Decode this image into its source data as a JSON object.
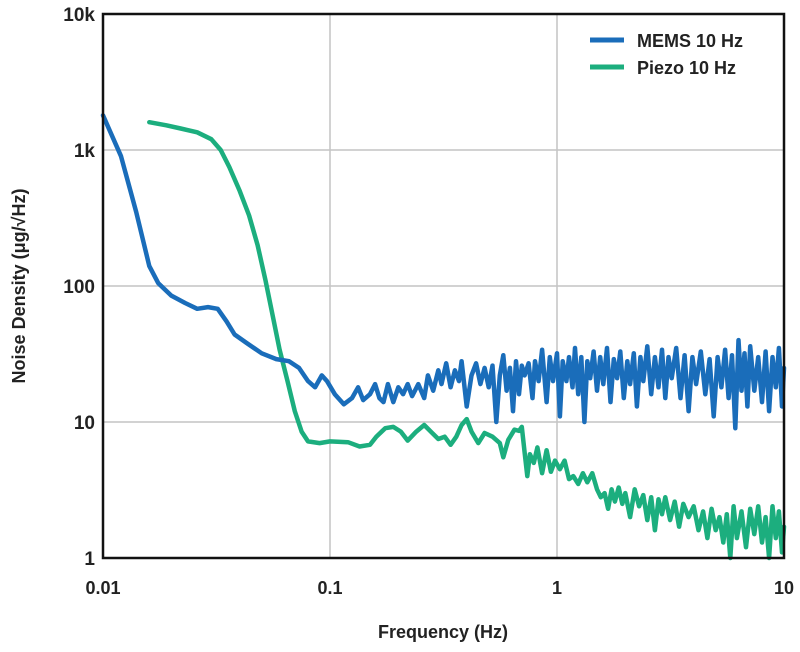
{
  "chart_data": {
    "type": "line",
    "title": "",
    "xlabel": "Frequency (Hz)",
    "ylabel": "Noise Density (μg/√Hz)",
    "xscale": "log",
    "yscale": "log",
    "xlim": [
      0.01,
      10
    ],
    "ylim": [
      1,
      10000
    ],
    "xticks": [
      0.01,
      0.1,
      1,
      10
    ],
    "xtick_labels": [
      "0.01",
      "0.1",
      "1",
      "10"
    ],
    "yticks": [
      1,
      10,
      100,
      1000,
      10000
    ],
    "ytick_labels": [
      "1",
      "10",
      "100",
      "1k",
      "10k"
    ],
    "grid": true,
    "legend_position": "top-right",
    "series": [
      {
        "name": "MEMS 10 Hz",
        "color": "#1a6dba",
        "points": [
          [
            0.01,
            1800
          ],
          [
            0.012,
            900
          ],
          [
            0.014,
            350
          ],
          [
            0.016,
            140
          ],
          [
            0.0175,
            105
          ],
          [
            0.02,
            85
          ],
          [
            0.023,
            75
          ],
          [
            0.026,
            68
          ],
          [
            0.029,
            70
          ],
          [
            0.032,
            68
          ],
          [
            0.035,
            55
          ],
          [
            0.038,
            44
          ],
          [
            0.043,
            38
          ],
          [
            0.05,
            32
          ],
          [
            0.058,
            29
          ],
          [
            0.066,
            28
          ],
          [
            0.073,
            25
          ],
          [
            0.08,
            20
          ],
          [
            0.086,
            18
          ],
          [
            0.092,
            22
          ],
          [
            0.097,
            20
          ],
          [
            0.105,
            16
          ],
          [
            0.115,
            13.5
          ],
          [
            0.125,
            15
          ],
          [
            0.133,
            18
          ],
          [
            0.14,
            14.5
          ],
          [
            0.15,
            16
          ],
          [
            0.158,
            19
          ],
          [
            0.165,
            15
          ],
          [
            0.172,
            14
          ],
          [
            0.18,
            19
          ],
          [
            0.19,
            14
          ],
          [
            0.2,
            18
          ],
          [
            0.21,
            16
          ],
          [
            0.22,
            19
          ],
          [
            0.23,
            15.5
          ],
          [
            0.245,
            19
          ],
          [
            0.26,
            15
          ],
          [
            0.27,
            22
          ],
          [
            0.285,
            17
          ],
          [
            0.3,
            24
          ],
          [
            0.31,
            19
          ],
          [
            0.325,
            27
          ],
          [
            0.34,
            18
          ],
          [
            0.355,
            24
          ],
          [
            0.37,
            20
          ],
          [
            0.38,
            28
          ],
          [
            0.4,
            13
          ],
          [
            0.42,
            22
          ],
          [
            0.44,
            27
          ],
          [
            0.46,
            19
          ],
          [
            0.48,
            25
          ],
          [
            0.5,
            18
          ],
          [
            0.52,
            26
          ],
          [
            0.54,
            10
          ],
          [
            0.56,
            22
          ],
          [
            0.58,
            31
          ],
          [
            0.6,
            17
          ],
          [
            0.62,
            25
          ],
          [
            0.64,
            12
          ],
          [
            0.66,
            28
          ],
          [
            0.68,
            16
          ],
          [
            0.7,
            26
          ],
          [
            0.72,
            22
          ],
          [
            0.75,
            27
          ],
          [
            0.78,
            15
          ],
          [
            0.8,
            28
          ],
          [
            0.83,
            20
          ],
          [
            0.86,
            34
          ],
          [
            0.9,
            14
          ],
          [
            0.93,
            30
          ],
          [
            0.96,
            20
          ],
          [
            1.0,
            32
          ],
          [
            1.03,
            11
          ],
          [
            1.06,
            28
          ],
          [
            1.1,
            20
          ],
          [
            1.13,
            30
          ],
          [
            1.17,
            18
          ],
          [
            1.2,
            35
          ],
          [
            1.24,
            16
          ],
          [
            1.28,
            30
          ],
          [
            1.32,
            10
          ],
          [
            1.36,
            28
          ],
          [
            1.4,
            21
          ],
          [
            1.45,
            33
          ],
          [
            1.5,
            17
          ],
          [
            1.55,
            30
          ],
          [
            1.6,
            19
          ],
          [
            1.66,
            35
          ],
          [
            1.72,
            14
          ],
          [
            1.78,
            29
          ],
          [
            1.84,
            21
          ],
          [
            1.9,
            33
          ],
          [
            1.97,
            15
          ],
          [
            2.04,
            28
          ],
          [
            2.1,
            19
          ],
          [
            2.18,
            32
          ],
          [
            2.25,
            13
          ],
          [
            2.33,
            30
          ],
          [
            2.4,
            20
          ],
          [
            2.5,
            36
          ],
          [
            2.6,
            16
          ],
          [
            2.7,
            30
          ],
          [
            2.8,
            18
          ],
          [
            2.9,
            34
          ],
          [
            3.0,
            15
          ],
          [
            3.1,
            30
          ],
          [
            3.2,
            21
          ],
          [
            3.35,
            35
          ],
          [
            3.5,
            15
          ],
          [
            3.65,
            31
          ],
          [
            3.8,
            12
          ],
          [
            3.95,
            30
          ],
          [
            4.1,
            19
          ],
          [
            4.3,
            33
          ],
          [
            4.5,
            16
          ],
          [
            4.7,
            29
          ],
          [
            4.9,
            11
          ],
          [
            5.1,
            30
          ],
          [
            5.3,
            18
          ],
          [
            5.5,
            34
          ],
          [
            5.7,
            15
          ],
          [
            5.9,
            31
          ],
          [
            6.1,
            9
          ],
          [
            6.3,
            40
          ],
          [
            6.5,
            17
          ],
          [
            6.7,
            32
          ],
          [
            6.9,
            13
          ],
          [
            7.1,
            36
          ],
          [
            7.4,
            17
          ],
          [
            7.7,
            30
          ],
          [
            8.0,
            14
          ],
          [
            8.3,
            33
          ],
          [
            8.6,
            12
          ],
          [
            8.9,
            30
          ],
          [
            9.2,
            18
          ],
          [
            9.5,
            35
          ],
          [
            9.8,
            13
          ],
          [
            10,
            25
          ]
        ]
      },
      {
        "name": "Piezo 10 Hz",
        "color": "#1cae7e",
        "points": [
          [
            0.016,
            1600
          ],
          [
            0.019,
            1520
          ],
          [
            0.022,
            1440
          ],
          [
            0.026,
            1350
          ],
          [
            0.03,
            1200
          ],
          [
            0.033,
            1000
          ],
          [
            0.036,
            750
          ],
          [
            0.04,
            500
          ],
          [
            0.044,
            330
          ],
          [
            0.048,
            200
          ],
          [
            0.052,
            110
          ],
          [
            0.056,
            60
          ],
          [
            0.06,
            34
          ],
          [
            0.065,
            20
          ],
          [
            0.07,
            12
          ],
          [
            0.075,
            8.5
          ],
          [
            0.08,
            7.2
          ],
          [
            0.09,
            7.0
          ],
          [
            0.1,
            7.2
          ],
          [
            0.12,
            7.1
          ],
          [
            0.135,
            6.6
          ],
          [
            0.15,
            6.8
          ],
          [
            0.16,
            7.8
          ],
          [
            0.175,
            9.0
          ],
          [
            0.19,
            9.2
          ],
          [
            0.205,
            8.5
          ],
          [
            0.22,
            7.3
          ],
          [
            0.24,
            8.5
          ],
          [
            0.26,
            9.5
          ],
          [
            0.28,
            8.4
          ],
          [
            0.3,
            7.5
          ],
          [
            0.32,
            7.8
          ],
          [
            0.34,
            6.8
          ],
          [
            0.36,
            7.8
          ],
          [
            0.38,
            9.5
          ],
          [
            0.4,
            10.5
          ],
          [
            0.42,
            8.5
          ],
          [
            0.45,
            7.0
          ],
          [
            0.48,
            8.3
          ],
          [
            0.52,
            7.8
          ],
          [
            0.56,
            7.0
          ],
          [
            0.58,
            5.5
          ],
          [
            0.61,
            7.4
          ],
          [
            0.65,
            8.8
          ],
          [
            0.68,
            8.6
          ],
          [
            0.7,
            9.2
          ],
          [
            0.72,
            6.0
          ],
          [
            0.74,
            4.0
          ],
          [
            0.76,
            5.8
          ],
          [
            0.79,
            5.0
          ],
          [
            0.82,
            6.5
          ],
          [
            0.86,
            4.2
          ],
          [
            0.9,
            6.2
          ],
          [
            0.94,
            4.3
          ],
          [
            0.98,
            5.2
          ],
          [
            1.03,
            4.5
          ],
          [
            1.08,
            5.2
          ],
          [
            1.13,
            3.8
          ],
          [
            1.18,
            4.0
          ],
          [
            1.24,
            3.5
          ],
          [
            1.3,
            4.2
          ],
          [
            1.36,
            3.6
          ],
          [
            1.43,
            4.2
          ],
          [
            1.5,
            3.2
          ],
          [
            1.56,
            2.8
          ],
          [
            1.62,
            3.0
          ],
          [
            1.68,
            2.3
          ],
          [
            1.74,
            3.2
          ],
          [
            1.8,
            2.6
          ],
          [
            1.87,
            3.3
          ],
          [
            1.94,
            2.5
          ],
          [
            2.0,
            3.0
          ],
          [
            2.1,
            2.0
          ],
          [
            2.2,
            3.2
          ],
          [
            2.3,
            2.4
          ],
          [
            2.4,
            2.9
          ],
          [
            2.5,
            1.9
          ],
          [
            2.6,
            2.8
          ],
          [
            2.7,
            1.6
          ],
          [
            2.8,
            2.7
          ],
          [
            2.9,
            2.1
          ],
          [
            3.0,
            2.8
          ],
          [
            3.15,
            1.9
          ],
          [
            3.3,
            2.6
          ],
          [
            3.45,
            1.7
          ],
          [
            3.6,
            2.5
          ],
          [
            3.8,
            2.0
          ],
          [
            4.0,
            2.4
          ],
          [
            4.2,
            1.6
          ],
          [
            4.4,
            2.2
          ],
          [
            4.6,
            1.4
          ],
          [
            4.8,
            2.3
          ],
          [
            5.0,
            1.6
          ],
          [
            5.2,
            2.0
          ],
          [
            5.4,
            1.3
          ],
          [
            5.6,
            2.1
          ],
          [
            5.8,
            1.0
          ],
          [
            6.0,
            2.4
          ],
          [
            6.2,
            1.4
          ],
          [
            6.5,
            2.2
          ],
          [
            6.8,
            1.2
          ],
          [
            7.1,
            2.3
          ],
          [
            7.4,
            1.5
          ],
          [
            7.7,
            2.4
          ],
          [
            8.0,
            1.3
          ],
          [
            8.3,
            2.0
          ],
          [
            8.6,
            1.0
          ],
          [
            8.9,
            2.4
          ],
          [
            9.2,
            1.4
          ],
          [
            9.5,
            2.2
          ],
          [
            9.8,
            1.1
          ],
          [
            10,
            1.7
          ]
        ]
      }
    ]
  }
}
